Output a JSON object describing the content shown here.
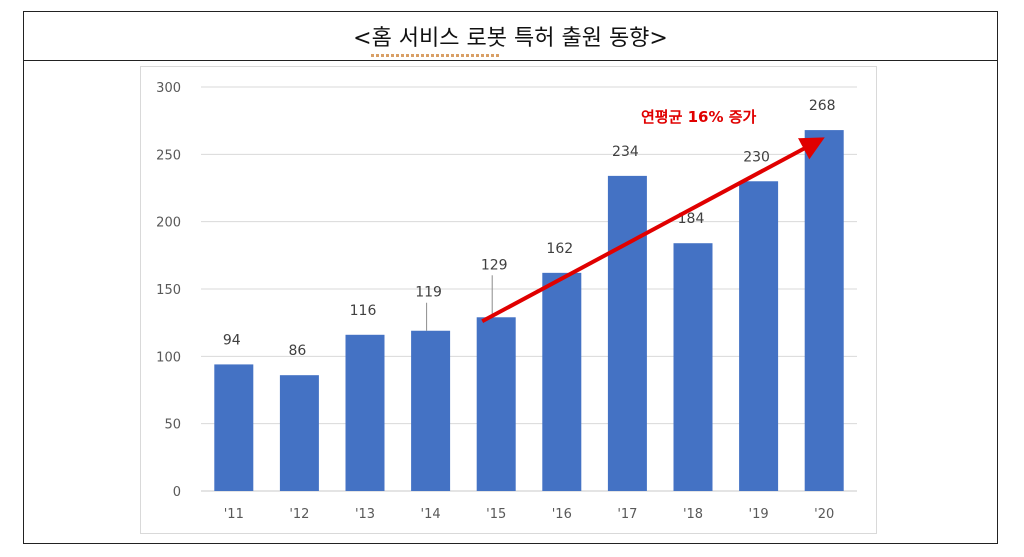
{
  "title": "<홈 서비스 로봇 특허 출원 동향>",
  "chart_data": {
    "type": "bar",
    "title": "<홈 서비스 로봇 특허 출원 동향>",
    "categories": [
      "'11",
      "'12",
      "'13",
      "'14",
      "'15",
      "'16",
      "'17",
      "'18",
      "'19",
      "'20"
    ],
    "values": [
      94,
      86,
      116,
      119,
      129,
      162,
      234,
      184,
      230,
      268
    ],
    "ylim": [
      0,
      300
    ],
    "yticks": [
      0,
      50,
      100,
      150,
      200,
      250,
      300
    ],
    "grid": true,
    "bar_color": "#4472C4",
    "annotation": {
      "text": "연평균 16% 증가",
      "color": "#e00000",
      "arrow_from": "'15",
      "arrow_to": "'20"
    }
  }
}
